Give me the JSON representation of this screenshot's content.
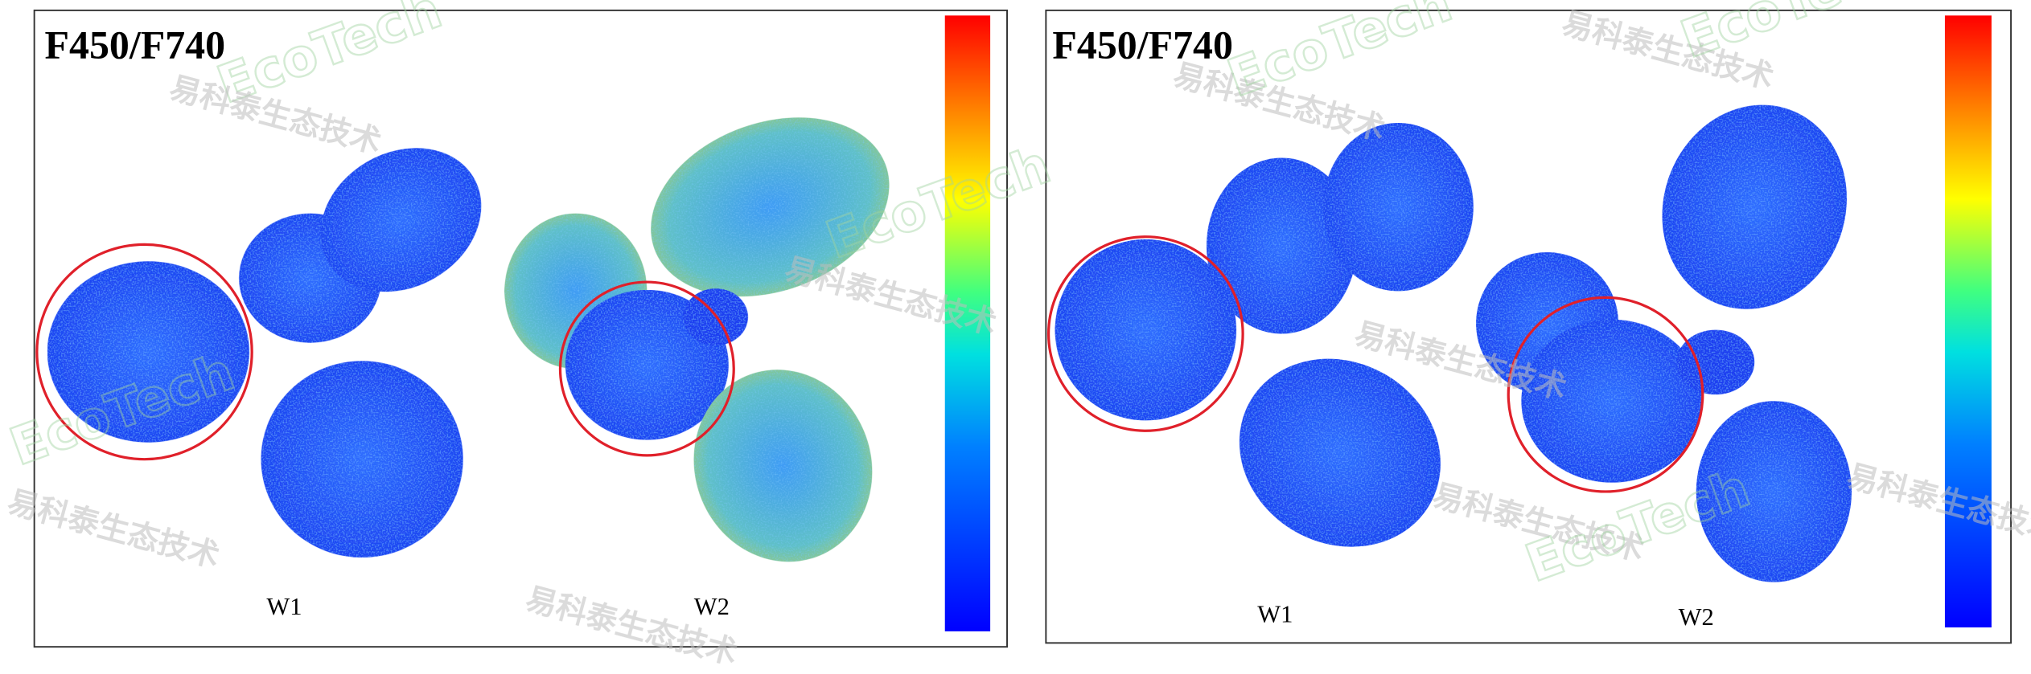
{
  "panels": [
    {
      "title": "F450/F740",
      "labels": [
        "W1",
        "W2"
      ]
    },
    {
      "title": "F450/F740",
      "labels": [
        "W1",
        "W2"
      ]
    }
  ],
  "watermark": {
    "cn": "易科泰生态技术",
    "en": "EcoTech"
  }
}
